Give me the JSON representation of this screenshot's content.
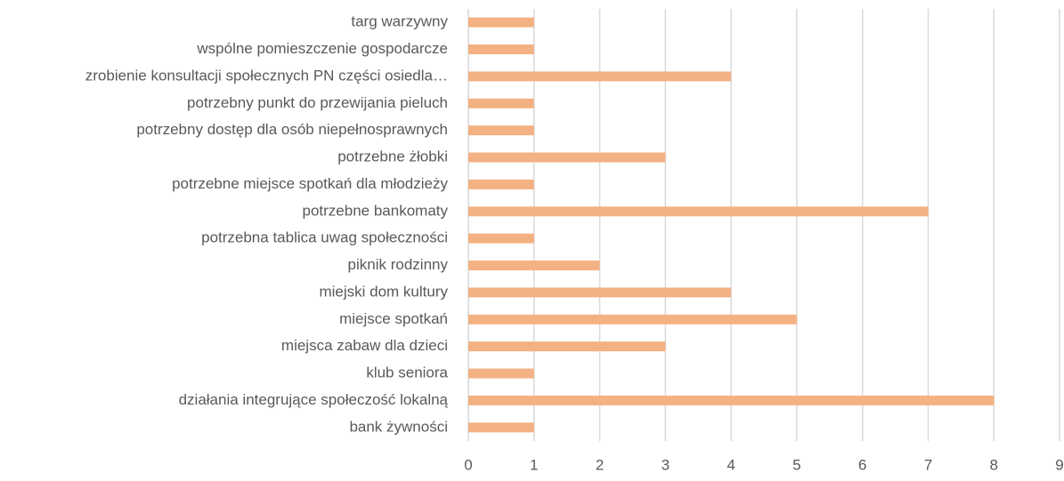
{
  "chart_data": {
    "type": "bar",
    "orientation": "horizontal",
    "categories": [
      "targ warzywny",
      "wspólne pomieszczenie gospodarcze",
      "zrobienie konsultacji społecznych PN części osiedla…",
      "potrzebny punkt do przewijania pieluch",
      "potrzebny dostęp dla osób niepełnosprawnych",
      "potrzebne żłobki",
      "potrzebne miejsce spotkań dla młodzieży",
      "potrzebne bankomaty",
      "potrzebna tablica uwag społeczności",
      "piknik rodzinny",
      "miejski dom kultury",
      "miejsce spotkań",
      "miejsca zabaw dla dzieci",
      "klub seniora",
      "działania integrujące społeczość lokalną",
      "bank żywności"
    ],
    "values": [
      1,
      1,
      4,
      1,
      1,
      3,
      1,
      7,
      1,
      2,
      4,
      5,
      3,
      1,
      8,
      1
    ],
    "color": "#f4b183",
    "xlim": [
      0,
      9
    ],
    "xticks": [
      0,
      1,
      2,
      3,
      4,
      5,
      6,
      7,
      8,
      9
    ],
    "grid": true
  }
}
